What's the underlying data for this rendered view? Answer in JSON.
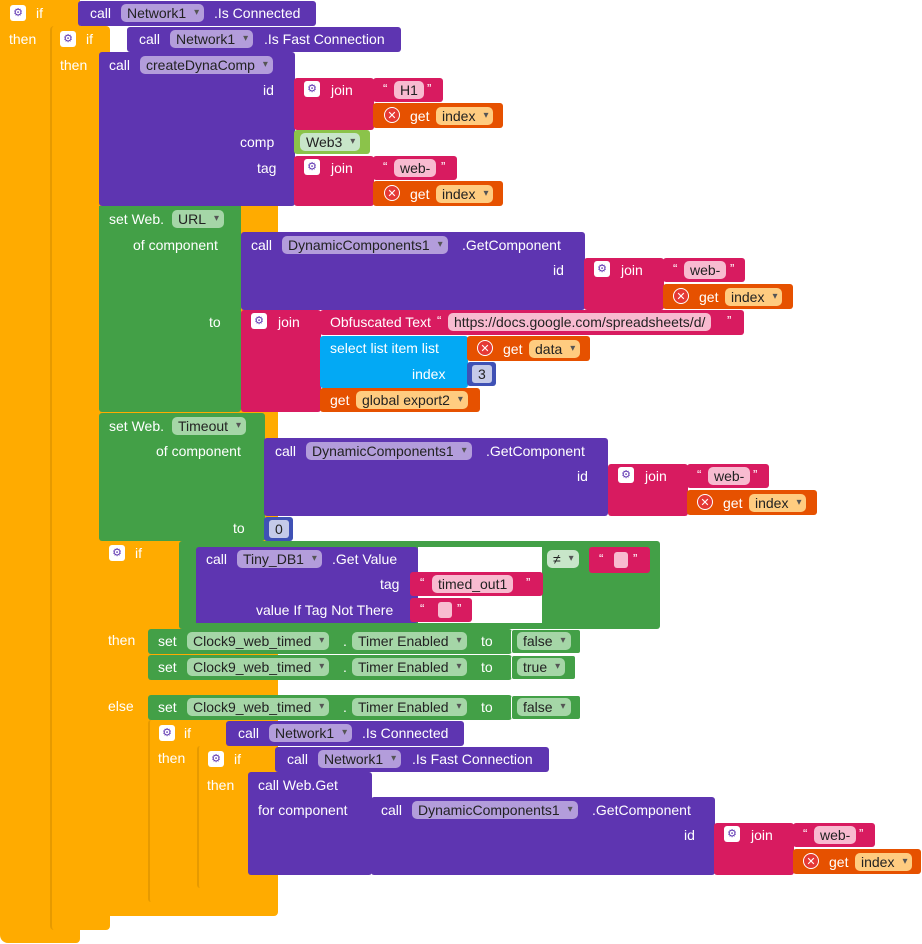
{
  "kw": {
    "if": "if",
    "then": "then",
    "else": "else",
    "call": "call",
    "join": "join",
    "get": "get",
    "set": "set",
    "to": "to",
    "id": "id",
    "comp": "comp",
    "tag": "tag",
    "index": "index",
    "of_component": "of component",
    "for_component": "for component",
    "open_q": "“",
    "close_q": "”",
    "neq": "≠",
    "gear": "⚙",
    "x": "✕"
  },
  "blocks": {
    "network_component": "Network1",
    "is_connected": ".Is Connected",
    "is_fast": ".Is Fast Connection",
    "create_dyna": "createDynaComp",
    "h1": "H1",
    "index_var": "index",
    "web3": "Web3",
    "web_prefix": "web-",
    "set_web": "set Web.",
    "url_prop": "URL",
    "timeout_prop": "Timeout",
    "dyn_component": "DynamicComponents1",
    "get_component": ".GetComponent",
    "obfuscated": "Obfuscated Text",
    "url_text": "https://docs.google.com/spreadsheets/d/",
    "select_list_item": "select list item  list",
    "data_var": "data",
    "index_value": "3",
    "global_export": "global export2",
    "zero": "0",
    "tinydb": "Tiny_DB1",
    "get_value": ".Get Value",
    "timed_out": "timed_out1",
    "value_if_not_there": "value If Tag Not There",
    "clock": "Clock9_web_timed",
    "dot": ".",
    "timer_enabled": "Timer Enabled",
    "false_val": "false",
    "true_val": "true",
    "call_web_get": "call Web.Get"
  },
  "colors": {
    "control": "#FFAB00",
    "procedure": "#5E35B1",
    "text": "#D81B60",
    "variable": "#E65100",
    "component_set": "#43A047",
    "list": "#03A9F4",
    "math": "#3F51B5"
  }
}
